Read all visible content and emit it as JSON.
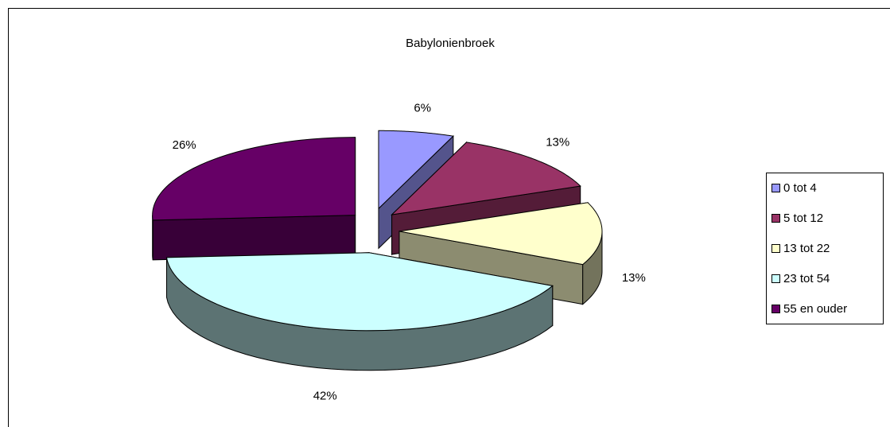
{
  "chart_data": {
    "type": "pie",
    "title": "Babylonienbroek",
    "categories": [
      "0 tot 4",
      "5 tot 12",
      "13 tot 22",
      "23 tot 54",
      "55 en ouder"
    ],
    "values": [
      6,
      13,
      13,
      42,
      26
    ],
    "value_labels": [
      "6%",
      "13%",
      "13%",
      "42%",
      "26%"
    ],
    "colors": [
      "#9999ff",
      "#993366",
      "#ffffcc",
      "#ccffff",
      "#660066"
    ],
    "legend": "right"
  }
}
